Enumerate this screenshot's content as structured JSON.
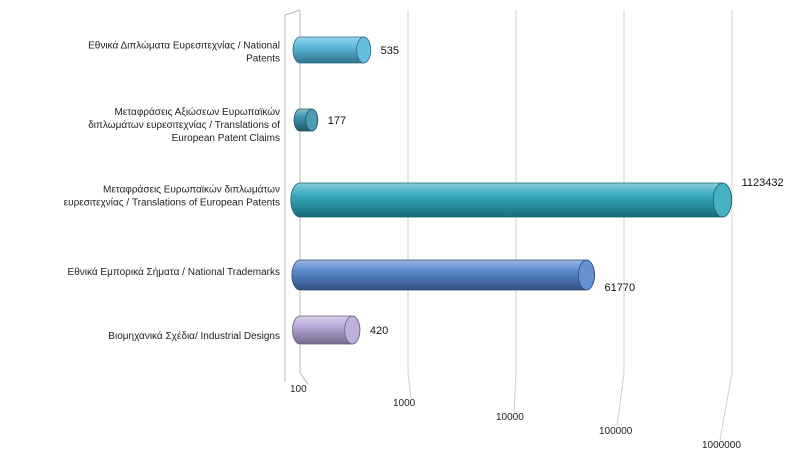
{
  "chart_data": {
    "type": "bar",
    "orientation": "horizontal",
    "style": "3d-cylinder",
    "x_scale": "log",
    "xlim": [
      100,
      1000000
    ],
    "x_ticks": [
      "100",
      "1000",
      "10000",
      "100000",
      "1000000"
    ],
    "grid": true,
    "legend": "none",
    "title": "",
    "categories": [
      [
        "Εθνικά Διπλώματα Ευρεσιτεχνίας / National",
        "Patents"
      ],
      [
        "Μεταφράσεις Αξιώσεων Ευρωπαϊκών",
        "διπλωμάτων ευρεσιτεχνίας / Translations of",
        "European Patent Claims"
      ],
      [
        "Μεταφράσεις Ευρωπαϊκών διπλωμάτων",
        "ευρεσιτεχνίας / Translations of European Patents"
      ],
      [
        "Εθνικά Εμπορικά Σήματα / National Trademarks"
      ],
      [
        "Βιομηχανικά Σχέδια/ Industrial Designs"
      ]
    ],
    "values": [
      535,
      177,
      1123432,
      61770,
      420
    ],
    "value_labels": [
      "535",
      "177",
      "1123432",
      "61770",
      "420"
    ],
    "colors": [
      "#4bb3d8",
      "#2e8aa6",
      "#24a3b8",
      "#4a7dc9",
      "#b3a2d6"
    ]
  }
}
